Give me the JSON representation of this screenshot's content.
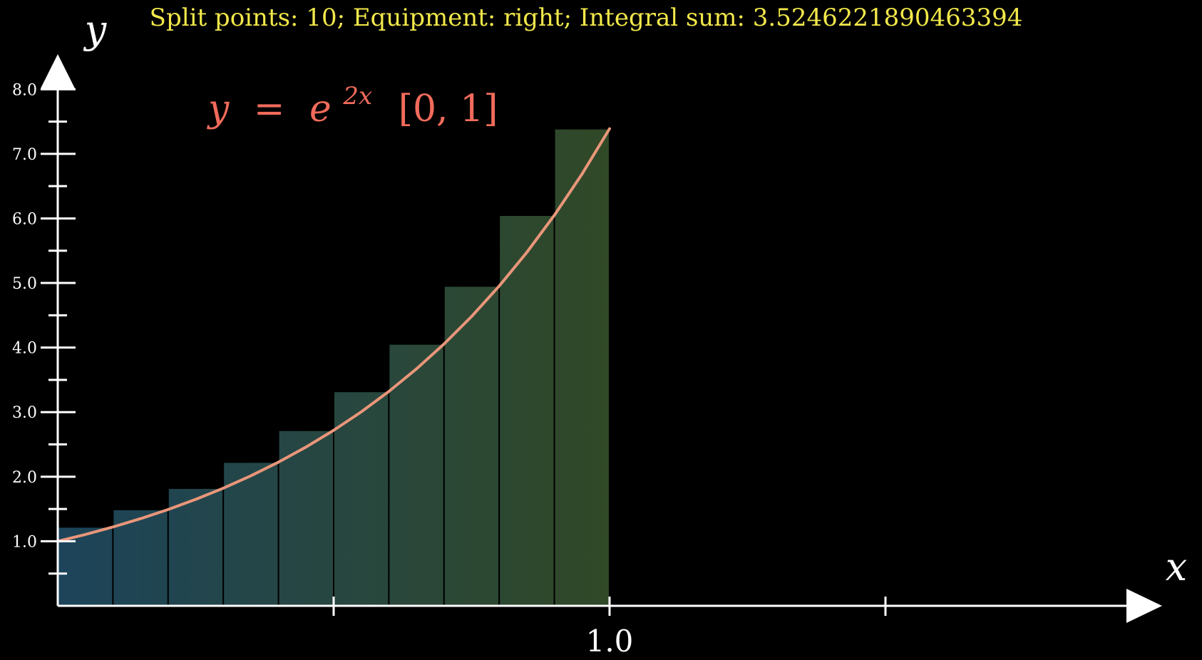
{
  "header": {
    "status_text": "Split points: 10; Equipment: right; Integral sum: 3.5246221890463394"
  },
  "colors": {
    "background": "#000000",
    "axis": "#ffffff",
    "header_text": "#f2e84a",
    "function_label": "#f26b5b",
    "curve": "#e9967a",
    "bar_left": "#1f4a62",
    "bar_right": "#354f2a",
    "bar_stroke": "#000000"
  },
  "chart_data": {
    "type": "bar",
    "subtype": "riemann-sum",
    "function_label": {
      "lhs": "y",
      "equals": "=",
      "base": "e",
      "exponent": "2x",
      "interval": "[0, 1]"
    },
    "xlabel": "x",
    "ylabel": "y",
    "split_points": 10,
    "rule": "right",
    "integral_sum": 3.5246221890463394,
    "x_domain": [
      0,
      2
    ],
    "y_domain": [
      0,
      8.5
    ],
    "x_tick_values": [
      0.5,
      1.0,
      1.5
    ],
    "x_tick_labels": [
      "",
      "1.0",
      ""
    ],
    "y_tick_values": [
      1,
      2,
      3,
      4,
      5,
      6,
      7,
      8
    ],
    "y_tick_labels": [
      "1.0",
      "2.0",
      "3.0",
      "4.0",
      "5.0",
      "6.0",
      "7.0",
      "8.0"
    ],
    "y_minor_tick_values": [
      0.5,
      1.5,
      2.5,
      3.5,
      4.5,
      5.5,
      6.5,
      7.5
    ],
    "bars": [
      {
        "x0": 0.0,
        "x1": 0.1,
        "height": 1.2214
      },
      {
        "x0": 0.1,
        "x1": 0.2,
        "height": 1.4918
      },
      {
        "x0": 0.2,
        "x1": 0.3,
        "height": 1.8221
      },
      {
        "x0": 0.3,
        "x1": 0.4,
        "height": 2.2255
      },
      {
        "x0": 0.4,
        "x1": 0.5,
        "height": 2.7183
      },
      {
        "x0": 0.5,
        "x1": 0.6,
        "height": 3.3201
      },
      {
        "x0": 0.6,
        "x1": 0.7,
        "height": 4.0552
      },
      {
        "x0": 0.7,
        "x1": 0.8,
        "height": 4.953
      },
      {
        "x0": 0.8,
        "x1": 0.9,
        "height": 6.0496
      },
      {
        "x0": 0.9,
        "x1": 1.0,
        "height": 7.3891
      }
    ],
    "curve_points": [
      {
        "x": 0.0,
        "y": 1.0
      },
      {
        "x": 0.05,
        "y": 1.1052
      },
      {
        "x": 0.1,
        "y": 1.2214
      },
      {
        "x": 0.15,
        "y": 1.3499
      },
      {
        "x": 0.2,
        "y": 1.4918
      },
      {
        "x": 0.25,
        "y": 1.6487
      },
      {
        "x": 0.3,
        "y": 1.8221
      },
      {
        "x": 0.35,
        "y": 2.0138
      },
      {
        "x": 0.4,
        "y": 2.2255
      },
      {
        "x": 0.45,
        "y": 2.4596
      },
      {
        "x": 0.5,
        "y": 2.7183
      },
      {
        "x": 0.55,
        "y": 3.0042
      },
      {
        "x": 0.6,
        "y": 3.3201
      },
      {
        "x": 0.65,
        "y": 3.6693
      },
      {
        "x": 0.7,
        "y": 4.0552
      },
      {
        "x": 0.75,
        "y": 4.4817
      },
      {
        "x": 0.8,
        "y": 4.953
      },
      {
        "x": 0.85,
        "y": 5.4739
      },
      {
        "x": 0.9,
        "y": 6.0496
      },
      {
        "x": 0.95,
        "y": 6.6859
      },
      {
        "x": 1.0,
        "y": 7.3891
      }
    ]
  }
}
